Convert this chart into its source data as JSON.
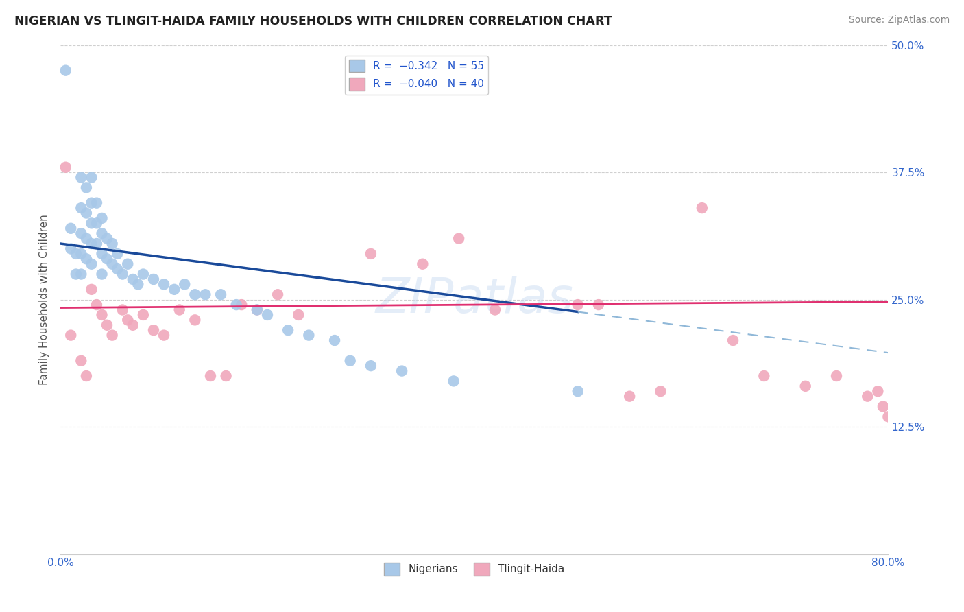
{
  "title": "NIGERIAN VS TLINGIT-HAIDA FAMILY HOUSEHOLDS WITH CHILDREN CORRELATION CHART",
  "source": "Source: ZipAtlas.com",
  "ylabel": "Family Households with Children",
  "watermark": "ZIPatlas",
  "xmin": 0.0,
  "xmax": 0.8,
  "ymin": 0.0,
  "ymax": 0.5,
  "color_nigerian": "#a8c8e8",
  "color_tlingit": "#f0a8bc",
  "color_line_nigerian_solid": "#1a4a9a",
  "color_line_nigerian_dash": "#90b8d8",
  "color_line_tlingit": "#e03070",
  "background": "#ffffff",
  "grid_color": "#d0d0d0",
  "nigerian_x": [
    0.005,
    0.01,
    0.01,
    0.015,
    0.015,
    0.02,
    0.02,
    0.02,
    0.02,
    0.02,
    0.025,
    0.025,
    0.025,
    0.025,
    0.03,
    0.03,
    0.03,
    0.03,
    0.03,
    0.035,
    0.035,
    0.035,
    0.04,
    0.04,
    0.04,
    0.04,
    0.045,
    0.045,
    0.05,
    0.05,
    0.055,
    0.055,
    0.06,
    0.065,
    0.07,
    0.075,
    0.08,
    0.09,
    0.1,
    0.11,
    0.12,
    0.13,
    0.14,
    0.155,
    0.17,
    0.19,
    0.2,
    0.22,
    0.24,
    0.265,
    0.28,
    0.3,
    0.33,
    0.38,
    0.5
  ],
  "nigerian_y": [
    0.475,
    0.32,
    0.3,
    0.295,
    0.275,
    0.37,
    0.34,
    0.315,
    0.295,
    0.275,
    0.36,
    0.335,
    0.31,
    0.29,
    0.37,
    0.345,
    0.325,
    0.305,
    0.285,
    0.345,
    0.325,
    0.305,
    0.33,
    0.315,
    0.295,
    0.275,
    0.31,
    0.29,
    0.305,
    0.285,
    0.295,
    0.28,
    0.275,
    0.285,
    0.27,
    0.265,
    0.275,
    0.27,
    0.265,
    0.26,
    0.265,
    0.255,
    0.255,
    0.255,
    0.245,
    0.24,
    0.235,
    0.22,
    0.215,
    0.21,
    0.19,
    0.185,
    0.18,
    0.17,
    0.16
  ],
  "tlingit_x": [
    0.005,
    0.01,
    0.02,
    0.025,
    0.03,
    0.035,
    0.04,
    0.045,
    0.05,
    0.06,
    0.065,
    0.07,
    0.08,
    0.09,
    0.1,
    0.115,
    0.13,
    0.145,
    0.16,
    0.175,
    0.19,
    0.21,
    0.23,
    0.3,
    0.35,
    0.385,
    0.42,
    0.5,
    0.52,
    0.55,
    0.58,
    0.62,
    0.65,
    0.68,
    0.72,
    0.75,
    0.78,
    0.79,
    0.795,
    0.8
  ],
  "tlingit_y": [
    0.38,
    0.215,
    0.19,
    0.175,
    0.26,
    0.245,
    0.235,
    0.225,
    0.215,
    0.24,
    0.23,
    0.225,
    0.235,
    0.22,
    0.215,
    0.24,
    0.23,
    0.175,
    0.175,
    0.245,
    0.24,
    0.255,
    0.235,
    0.295,
    0.285,
    0.31,
    0.24,
    0.245,
    0.245,
    0.155,
    0.16,
    0.34,
    0.21,
    0.175,
    0.165,
    0.175,
    0.155,
    0.16,
    0.145,
    0.135
  ],
  "nig_line_x0": 0.0,
  "nig_line_y0": 0.305,
  "nig_line_x1": 0.5,
  "nig_line_y1": 0.238,
  "nig_line_xdash_end": 0.8,
  "tli_line_x0": 0.0,
  "tli_line_y0": 0.242,
  "tli_line_x1": 0.8,
  "tli_line_y1": 0.248
}
